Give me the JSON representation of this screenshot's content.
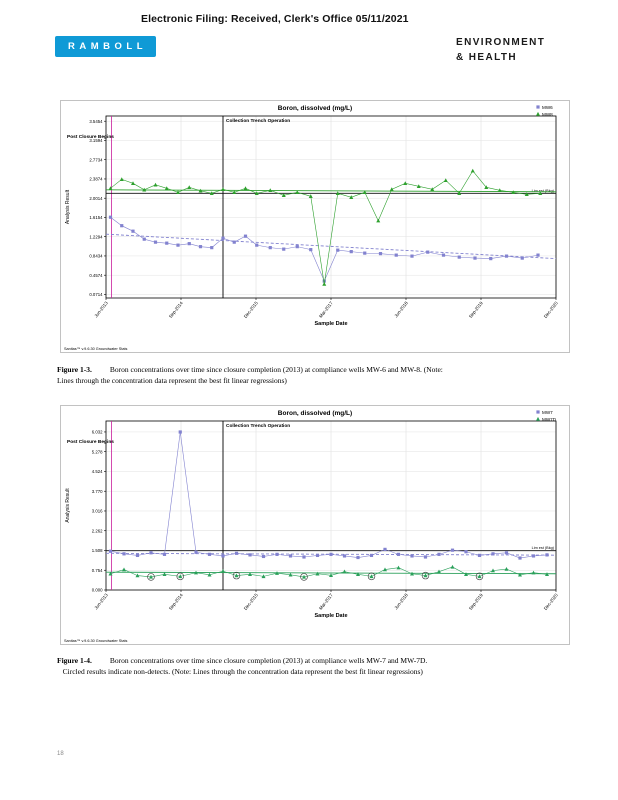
{
  "page": {
    "header": "Electronic Filing: Received, Clerk's Office 05/11/2021",
    "logo": "RAMBOLL",
    "brand_line1": "ENVIRONMENT",
    "brand_line2": "& HEALTH",
    "page_number": "18"
  },
  "colors": {
    "ramboll_blue": "#0f9ad6",
    "magenta": "#c81e9b",
    "grid": "#d8d8d8",
    "grid_h": "#e2e2e2",
    "ref": "#111111"
  },
  "figures": [
    {
      "label": "Figure 1-3.",
      "text": "Boron concentrations over time since closure completion (2013) at compliance wells MW-6 and MW-8.  (Note: Lines through the concentration data represent the best fit linear regressions)"
    },
    {
      "label": "Figure 1-4.",
      "text": "Boron concentrations over time since closure completion (2013) at compliance wells MW-7 and MW-7D.    Circled results indicate non-detects.  (Note: Lines through the concentration data represent the best fit linear regressions)"
    }
  ],
  "chart_data": [
    {
      "type": "scatter",
      "title": "Boron, dissolved (mg/L)",
      "xlabel": "Sample Date",
      "ylabel": "Analysis Result",
      "legend_position": "top-right",
      "grid": true,
      "x_ticks": [
        "Jun-2013",
        "Sep-2014",
        "Dec-2015",
        "Mar-2017",
        "Jun-2018",
        "Sep-2019",
        "Dec-2020"
      ],
      "y_ticks": [
        "0.0714",
        "0.4574",
        "0.8434",
        "1.2294",
        "1.6154",
        "2.0014",
        "2.3874",
        "2.7734",
        "3.1594",
        "3.5454"
      ],
      "ylim": [
        0,
        3.65
      ],
      "ref_line_y": 2.1,
      "event_x": {
        "post_closure": 0.012,
        "trench": 0.26
      },
      "annotations": {
        "post_closure": "Post Closure Begins",
        "trench": "Collection Trench Operation",
        "ref_label": "Lim est (Bkg)",
        "footnote": "Sanitas™ v.9.6.30 Groundwater Stats"
      },
      "series": [
        {
          "name": "MW6",
          "marker": "square",
          "color": "#8282cf",
          "trend": [
            1.28,
            0.79
          ],
          "trend_dash": true,
          "points": [
            [
              0.01,
              1.62
            ],
            [
              0.035,
              1.45
            ],
            [
              0.06,
              1.34
            ],
            [
              0.085,
              1.18
            ],
            [
              0.11,
              1.12
            ],
            [
              0.135,
              1.1
            ],
            [
              0.16,
              1.06
            ],
            [
              0.185,
              1.09
            ],
            [
              0.21,
              1.03
            ],
            [
              0.235,
              1.01
            ],
            [
              0.26,
              1.2
            ],
            [
              0.285,
              1.12
            ],
            [
              0.31,
              1.24
            ],
            [
              0.335,
              1.06
            ],
            [
              0.365,
              1.01
            ],
            [
              0.395,
              0.98
            ],
            [
              0.425,
              1.03
            ],
            [
              0.455,
              0.97
            ],
            [
              0.485,
              0.34
            ],
            [
              0.515,
              0.96
            ],
            [
              0.545,
              0.93
            ],
            [
              0.575,
              0.9
            ],
            [
              0.61,
              0.89
            ],
            [
              0.645,
              0.86
            ],
            [
              0.68,
              0.84
            ],
            [
              0.715,
              0.92
            ],
            [
              0.75,
              0.86
            ],
            [
              0.785,
              0.82
            ],
            [
              0.82,
              0.8
            ],
            [
              0.855,
              0.79
            ],
            [
              0.89,
              0.84
            ],
            [
              0.925,
              0.8
            ],
            [
              0.96,
              0.86
            ]
          ]
        },
        {
          "name": "MW8",
          "marker": "triangle",
          "color": "#2da02d",
          "trend": [
            2.17,
            2.13
          ],
          "trend_dash": false,
          "points": [
            [
              0.01,
              2.2
            ],
            [
              0.035,
              2.38
            ],
            [
              0.06,
              2.3
            ],
            [
              0.085,
              2.17
            ],
            [
              0.11,
              2.27
            ],
            [
              0.135,
              2.2
            ],
            [
              0.16,
              2.12
            ],
            [
              0.185,
              2.22
            ],
            [
              0.21,
              2.15
            ],
            [
              0.235,
              2.1
            ],
            [
              0.26,
              2.18
            ],
            [
              0.285,
              2.12
            ],
            [
              0.31,
              2.2
            ],
            [
              0.335,
              2.1
            ],
            [
              0.365,
              2.16
            ],
            [
              0.395,
              2.06
            ],
            [
              0.425,
              2.12
            ],
            [
              0.455,
              2.04
            ],
            [
              0.485,
              0.28
            ],
            [
              0.515,
              2.1
            ],
            [
              0.545,
              2.02
            ],
            [
              0.575,
              2.12
            ],
            [
              0.605,
              1.55
            ],
            [
              0.635,
              2.18
            ],
            [
              0.665,
              2.3
            ],
            [
              0.695,
              2.24
            ],
            [
              0.725,
              2.18
            ],
            [
              0.755,
              2.36
            ],
            [
              0.785,
              2.1
            ],
            [
              0.815,
              2.55
            ],
            [
              0.845,
              2.22
            ],
            [
              0.875,
              2.16
            ],
            [
              0.905,
              2.12
            ],
            [
              0.935,
              2.08
            ],
            [
              0.965,
              2.1
            ]
          ]
        }
      ]
    },
    {
      "type": "scatter",
      "title": "Boron, dissolved (mg/L)",
      "xlabel": "Sample Date",
      "ylabel": "Analysis Result",
      "legend_position": "top-right",
      "grid": true,
      "x_ticks": [
        "Jun-2013",
        "Sep-2014",
        "Dec-2015",
        "Mar-2017",
        "Jun-2018",
        "Sep-2019",
        "Dec-2020"
      ],
      "y_ticks": [
        "0.000",
        "0.754",
        "1.508",
        "2.262",
        "3.016",
        "3.770",
        "4.524",
        "5.278",
        "6.032"
      ],
      "ylim": [
        0,
        6.45
      ],
      "ref_line_y": 1.5,
      "event_x": {
        "post_closure": 0.012,
        "trench": 0.26
      },
      "annotations": {
        "post_closure": "Post Closure Begins",
        "trench": "Collection Trench Operation",
        "ref_label": "Lim est (Bkg)",
        "footnote": "Sanitas™ v.9.6.30 Groundwater Stats"
      },
      "series": [
        {
          "name": "MW7",
          "marker": "square",
          "color": "#8282cf",
          "trend": [
            1.4,
            1.33
          ],
          "trend_dash": true,
          "points": [
            [
              0.01,
              1.48
            ],
            [
              0.04,
              1.38
            ],
            [
              0.07,
              1.32
            ],
            [
              0.1,
              1.42
            ],
            [
              0.13,
              1.36
            ],
            [
              0.165,
              6.03
            ],
            [
              0.2,
              1.44
            ],
            [
              0.23,
              1.36
            ],
            [
              0.26,
              1.3
            ],
            [
              0.29,
              1.4
            ],
            [
              0.32,
              1.34
            ],
            [
              0.35,
              1.28
            ],
            [
              0.38,
              1.36
            ],
            [
              0.41,
              1.3
            ],
            [
              0.44,
              1.26
            ],
            [
              0.47,
              1.32
            ],
            [
              0.5,
              1.36
            ],
            [
              0.53,
              1.3
            ],
            [
              0.56,
              1.24
            ],
            [
              0.59,
              1.32
            ],
            [
              0.62,
              1.55
            ],
            [
              0.65,
              1.36
            ],
            [
              0.68,
              1.3
            ],
            [
              0.71,
              1.26
            ],
            [
              0.74,
              1.36
            ],
            [
              0.77,
              1.52
            ],
            [
              0.8,
              1.46
            ],
            [
              0.83,
              1.32
            ],
            [
              0.86,
              1.38
            ],
            [
              0.89,
              1.42
            ],
            [
              0.92,
              1.22
            ],
            [
              0.95,
              1.3
            ],
            [
              0.98,
              1.34
            ]
          ]
        },
        {
          "name": "MW7D",
          "marker": "triangle",
          "color": "#2aa05a",
          "trend": [
            0.68,
            0.62
          ],
          "trend_dash": false,
          "circled": [
            3,
            5,
            9,
            14,
            19,
            23,
            27
          ],
          "points": [
            [
              0.01,
              0.62
            ],
            [
              0.04,
              0.78
            ],
            [
              0.07,
              0.55
            ],
            [
              0.1,
              0.5
            ],
            [
              0.13,
              0.6
            ],
            [
              0.165,
              0.52
            ],
            [
              0.2,
              0.66
            ],
            [
              0.23,
              0.58
            ],
            [
              0.26,
              0.72
            ],
            [
              0.29,
              0.55
            ],
            [
              0.32,
              0.6
            ],
            [
              0.35,
              0.52
            ],
            [
              0.38,
              0.64
            ],
            [
              0.41,
              0.58
            ],
            [
              0.44,
              0.5
            ],
            [
              0.47,
              0.62
            ],
            [
              0.5,
              0.56
            ],
            [
              0.53,
              0.7
            ],
            [
              0.56,
              0.6
            ],
            [
              0.59,
              0.52
            ],
            [
              0.62,
              0.78
            ],
            [
              0.65,
              0.85
            ],
            [
              0.68,
              0.62
            ],
            [
              0.71,
              0.55
            ],
            [
              0.74,
              0.7
            ],
            [
              0.77,
              0.88
            ],
            [
              0.8,
              0.6
            ],
            [
              0.83,
              0.52
            ],
            [
              0.86,
              0.74
            ],
            [
              0.89,
              0.8
            ],
            [
              0.92,
              0.58
            ],
            [
              0.95,
              0.66
            ],
            [
              0.98,
              0.6
            ]
          ]
        }
      ]
    }
  ]
}
